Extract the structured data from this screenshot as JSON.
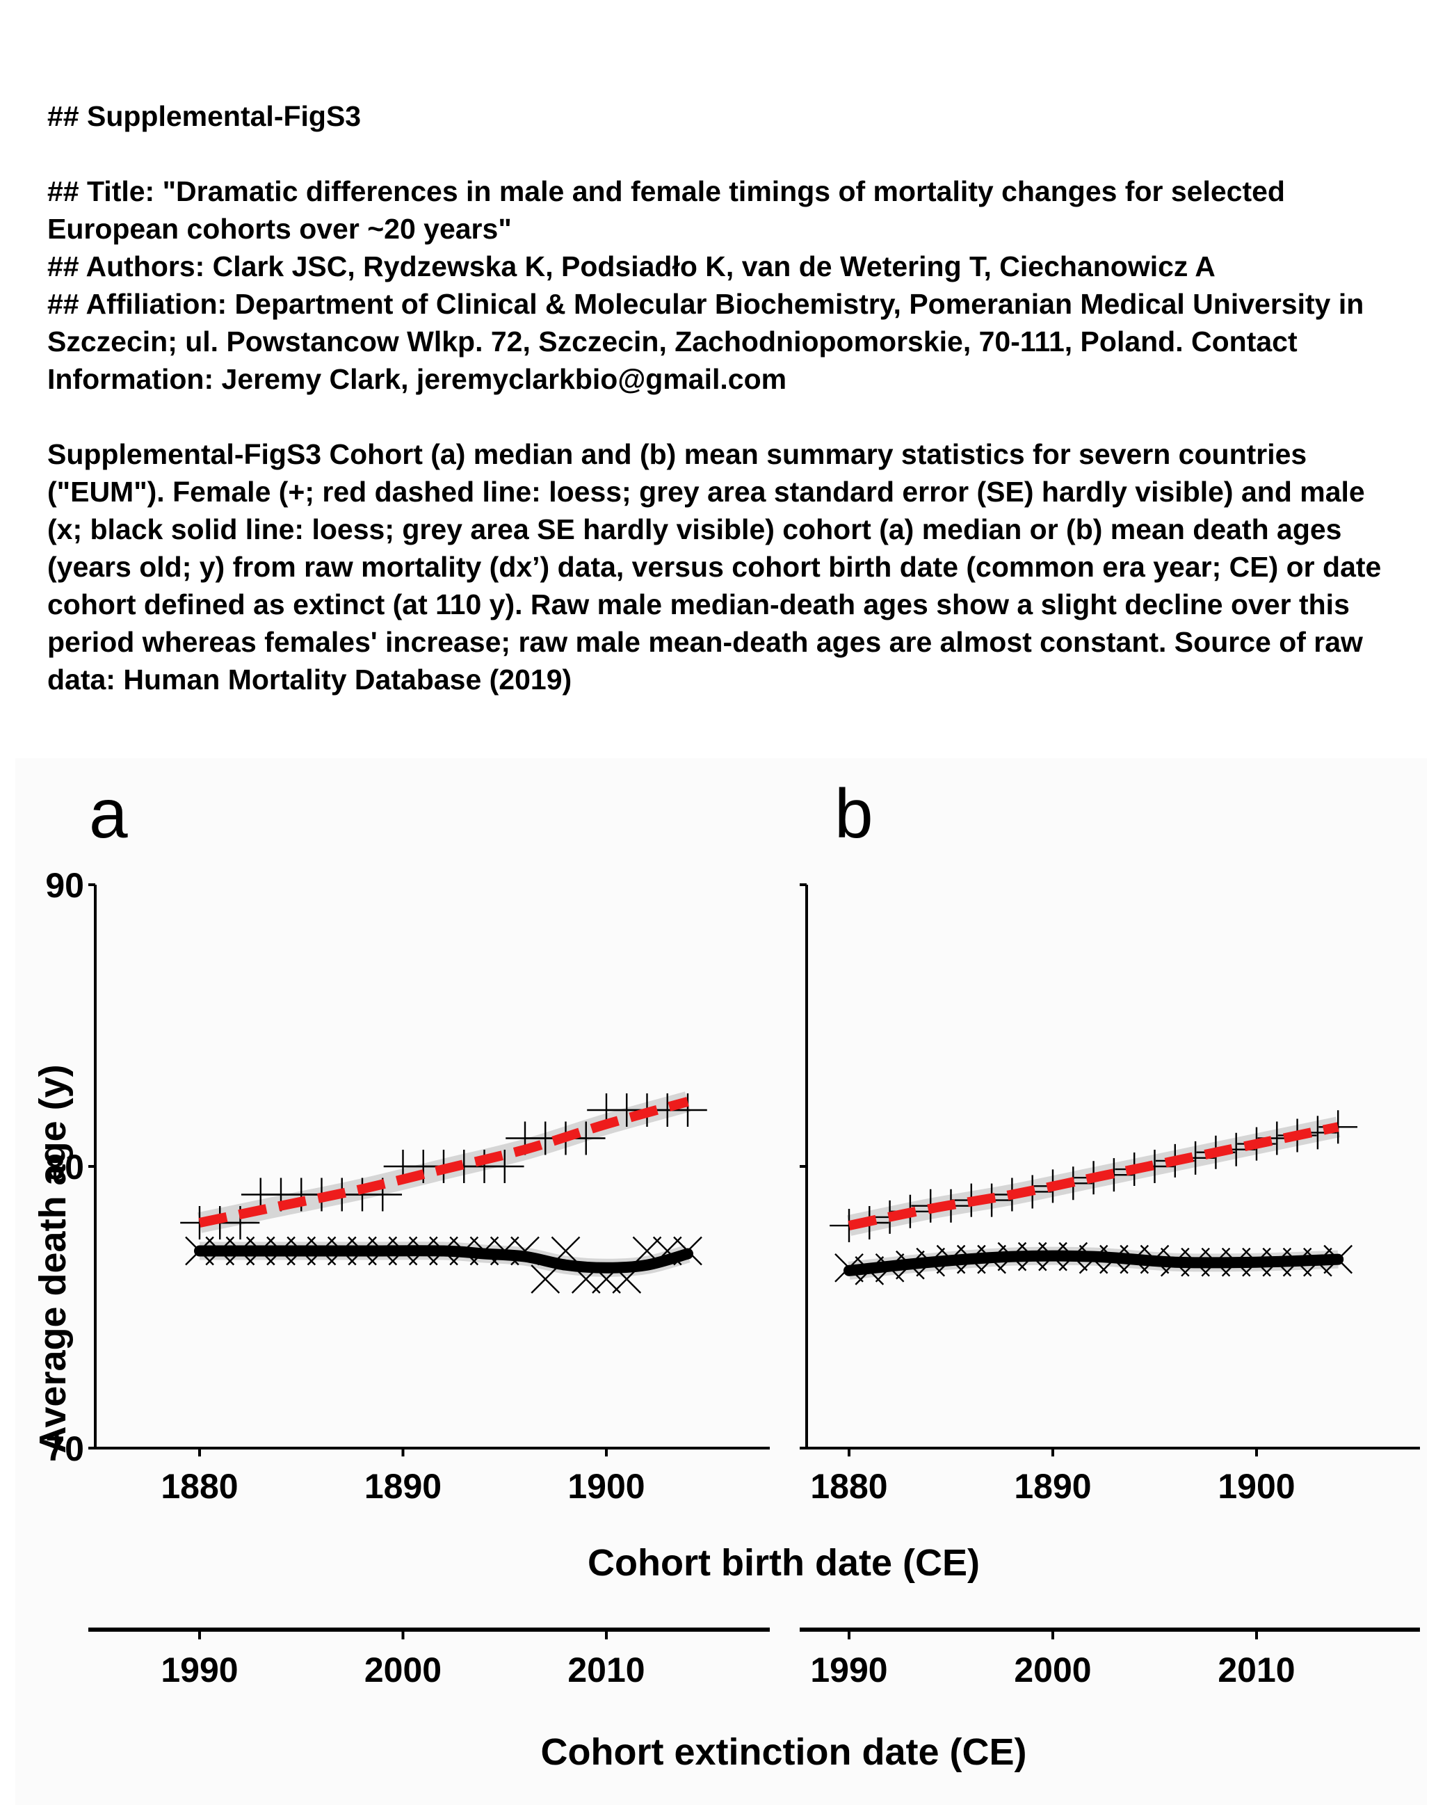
{
  "caption": {
    "heading": "## Supplemental-FigS3",
    "title": "## Title: \"Dramatic differences in male and female timings of mortality changes for selected European cohorts over ~20 years\"",
    "authors": "## Authors: Clark JSC, Rydzewska K, Podsiadło K, van de Wetering T, Ciechanowicz A",
    "affiliation": "## Affiliation: Department of Clinical & Molecular Biochemistry, Pomeranian Medical University in Szczecin; ul. Powstancow Wlkp. 72, Szczecin, Zachodniopomorskie, 70-111, Poland. Contact Information: Jeremy Clark, jeremyclarkbio@gmail.com",
    "legend_text": "Supplemental-FigS3 Cohort (a) median and (b) mean summary statistics for severn countries (\"EUM\"). Female (+; red dashed line: loess; grey area standard error (SE) hardly visible) and male (x; black solid line: loess; grey area SE hardly visible) cohort (a) median or (b) mean death ages (years old; y) from raw mortality (dx’) data, versus cohort birth date (common era year; CE) or date cohort defined as extinct (at 110 y). Raw male median-death ages show a slight decline over this period whereas females' increase; raw male mean-death ages are almost constant. Source of raw data: Human Mortality Database (2019)"
  },
  "chart_data": [
    {
      "panel": "a",
      "type": "scatter",
      "xlabel": "Cohort birth date (CE)",
      "x2label": "Cohort extinction date (CE)",
      "ylabel": "Average death age (y)",
      "xlim": [
        1878,
        1908
      ],
      "ylim": [
        70,
        90
      ],
      "xticks": [
        "1880",
        "1890",
        "1900"
      ],
      "x2ticks": [
        "1990",
        "2000",
        "2010"
      ],
      "yticks": [
        "70",
        "80",
        "90"
      ],
      "series": [
        {
          "marker": "+",
          "color": "#000000",
          "x": [
            1880,
            1881,
            1882,
            1883,
            1884,
            1885,
            1886,
            1887,
            1888,
            1889,
            1890,
            1891,
            1892,
            1893,
            1894,
            1895,
            1896,
            1897,
            1898,
            1899,
            1900,
            1901,
            1902,
            1903,
            1904
          ],
          "y": [
            78,
            78,
            78,
            79,
            79,
            79,
            79,
            79,
            79,
            79,
            80,
            80,
            80,
            80,
            80,
            80,
            81,
            81,
            81,
            81,
            82,
            82,
            82,
            82,
            82
          ]
        },
        {
          "marker": "x",
          "color": "#000000",
          "x": [
            1880,
            1881,
            1882,
            1883,
            1884,
            1885,
            1886,
            1887,
            1888,
            1889,
            1890,
            1891,
            1892,
            1893,
            1894,
            1895,
            1896,
            1897,
            1898,
            1899,
            1900,
            1901,
            1902,
            1903,
            1904
          ],
          "y": [
            77,
            77,
            77,
            77,
            77,
            77,
            77,
            77,
            77,
            77,
            77,
            77,
            77,
            77,
            77,
            77,
            77,
            76,
            77,
            76,
            76,
            76,
            77,
            77,
            77
          ]
        }
      ],
      "fits": [
        {
          "style": "dashed",
          "color": "#ee1c1c",
          "se_color": "#d6d6d6",
          "x": [
            1880,
            1884,
            1888,
            1892,
            1896,
            1900,
            1904
          ],
          "y": [
            78.0,
            78.6,
            79.2,
            79.9,
            80.6,
            81.5,
            82.3
          ]
        },
        {
          "style": "solid",
          "color": "#000000",
          "se_color": "#d6d6d6",
          "x": [
            1880,
            1884,
            1888,
            1892,
            1894,
            1896,
            1898,
            1900,
            1902,
            1904
          ],
          "y": [
            77.0,
            77.0,
            77.0,
            77.0,
            76.9,
            76.8,
            76.5,
            76.4,
            76.5,
            76.9
          ]
        }
      ]
    },
    {
      "panel": "b",
      "type": "scatter",
      "xlabel": "Cohort birth date (CE)",
      "x2label": "Cohort extinction date (CE)",
      "ylabel": "Average death age (y)",
      "xlim": [
        1878,
        1908
      ],
      "ylim": [
        70,
        90
      ],
      "xticks": [
        "1880",
        "1890",
        "1900"
      ],
      "x2ticks": [
        "1990",
        "2000",
        "2010"
      ],
      "yticks": [
        "70",
        "80",
        "90"
      ],
      "series": [
        {
          "marker": "+",
          "color": "#000000",
          "x": [
            1880,
            1881,
            1882,
            1883,
            1884,
            1885,
            1886,
            1887,
            1888,
            1889,
            1890,
            1891,
            1892,
            1893,
            1894,
            1895,
            1896,
            1897,
            1898,
            1899,
            1900,
            1901,
            1902,
            1903,
            1904
          ],
          "y": [
            77.9,
            78.0,
            78.2,
            78.4,
            78.6,
            78.6,
            78.8,
            78.8,
            79.0,
            79.1,
            79.3,
            79.4,
            79.6,
            79.7,
            79.9,
            80.0,
            80.2,
            80.3,
            80.5,
            80.6,
            80.8,
            81.0,
            81.1,
            81.2,
            81.4
          ]
        },
        {
          "marker": "x",
          "color": "#000000",
          "x": [
            1880,
            1881,
            1882,
            1883,
            1884,
            1885,
            1886,
            1887,
            1888,
            1889,
            1890,
            1891,
            1892,
            1893,
            1894,
            1895,
            1896,
            1897,
            1898,
            1899,
            1900,
            1901,
            1902,
            1903,
            1904
          ],
          "y": [
            76.4,
            76.3,
            76.4,
            76.5,
            76.6,
            76.7,
            76.7,
            76.7,
            76.8,
            76.8,
            76.8,
            76.8,
            76.7,
            76.7,
            76.7,
            76.7,
            76.6,
            76.6,
            76.6,
            76.6,
            76.6,
            76.6,
            76.6,
            76.6,
            76.7
          ]
        }
      ],
      "fits": [
        {
          "style": "dashed",
          "color": "#ee1c1c",
          "se_color": "#d6d6d6",
          "x": [
            1880,
            1884,
            1888,
            1892,
            1896,
            1900,
            1904
          ],
          "y": [
            77.9,
            78.5,
            79.0,
            79.6,
            80.2,
            80.8,
            81.4
          ]
        },
        {
          "style": "solid",
          "color": "#000000",
          "se_color": "#d6d6d6",
          "x": [
            1880,
            1884,
            1888,
            1892,
            1896,
            1900,
            1904
          ],
          "y": [
            76.3,
            76.6,
            76.8,
            76.8,
            76.6,
            76.6,
            76.7
          ]
        }
      ]
    }
  ]
}
